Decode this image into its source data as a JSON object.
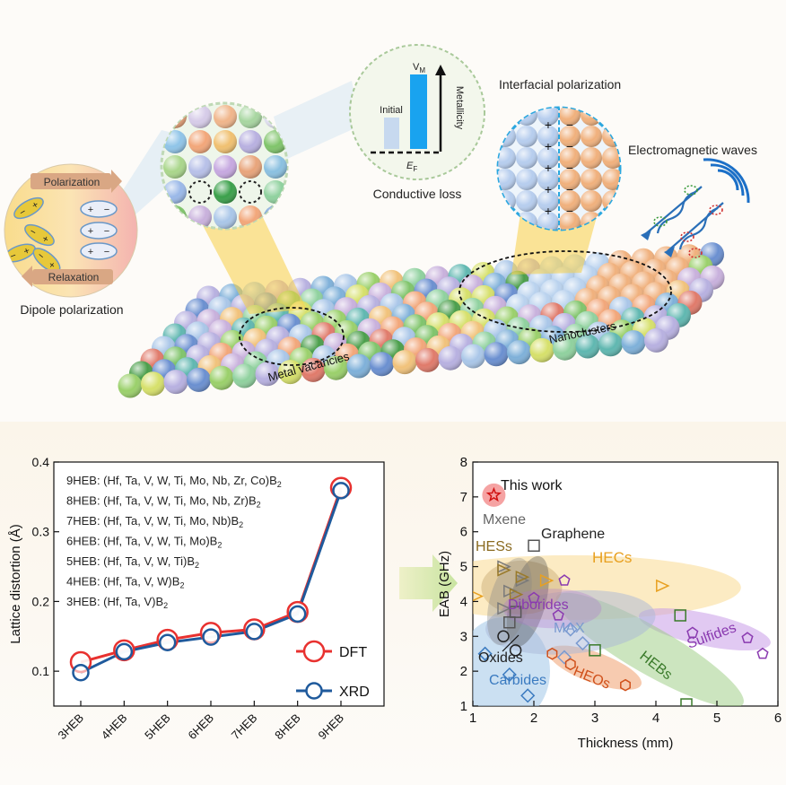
{
  "top": {
    "interfacial": "Interfacial polarization",
    "em_waves": "Electromagnetic waves",
    "conductive_loss": "Conductive loss",
    "metallicity": "Metallicity",
    "initial": "Initial",
    "vm": "V",
    "vm_sub": "M",
    "ef": "E",
    "ef_sub": "F",
    "polarization": "Polarization",
    "relaxation": "Relaxation",
    "dipole": "Dipole polarization",
    "metal_vacancies": "Metal vacancies",
    "nanoclusters": "Nanoclusters"
  },
  "colors": {
    "dft": "#e8312f",
    "xrd": "#1f5a9c",
    "ball_palette": [
      "#f2a679",
      "#a9c6e8",
      "#7fc46a",
      "#c8b0dc",
      "#4a9e4a",
      "#8fd19e",
      "#b7b0e0",
      "#7eb0d9",
      "#f1c27a",
      "#d6e06a",
      "#5fb7b0",
      "#e07a6a",
      "#9ad06a",
      "#6a8fd0"
    ]
  },
  "chart_data": [
    {
      "type": "line",
      "ylabel": "Lattice distortion (Å)",
      "categories": [
        "3HEB",
        "4HEB",
        "5HEB",
        "6HEB",
        "7HEB",
        "8HEB",
        "9HEB"
      ],
      "ylim": [
        0.05,
        0.4
      ],
      "yticks": [
        "0.1",
        "0.2",
        "0.3",
        "0.4"
      ],
      "series": [
        {
          "name": "DFT",
          "values": [
            0.113,
            0.13,
            0.145,
            0.155,
            0.16,
            0.185,
            0.363
          ]
        },
        {
          "name": "XRD",
          "values": [
            0.098,
            0.128,
            0.141,
            0.149,
            0.157,
            0.182,
            0.359
          ]
        }
      ],
      "annotations": [
        {
          "name": "9HEB: (Hf, Ta, V, W, Ti, Mo, Nb, Zr, Co)B",
          "sub": "2"
        },
        {
          "name": "8HEB: (Hf, Ta, V, W, Ti, Mo, Nb, Zr)B",
          "sub": "2"
        },
        {
          "name": "7HEB: (Hf, Ta, V, W, Ti, Mo, Nb)B",
          "sub": "2"
        },
        {
          "name": "6HEB: (Hf, Ta, V, W, Ti, Mo)B",
          "sub": "2"
        },
        {
          "name": "5HEB: (Hf, Ta, V, W, Ti)B",
          "sub": "2"
        },
        {
          "name": "4HEB: (Hf, Ta, V, W)B",
          "sub": "2"
        },
        {
          "name": "3HEB: (Hf, Ta, V)B",
          "sub": "2"
        }
      ],
      "legend_position": "bottom-right"
    },
    {
      "type": "scatter",
      "xlabel": "Thickness (mm)",
      "ylabel": "EAB (GHz)",
      "xlim": [
        1,
        6
      ],
      "ylim": [
        1,
        8
      ],
      "xticks": [
        "1",
        "2",
        "3",
        "4",
        "5",
        "6"
      ],
      "yticks": [
        "1",
        "2",
        "3",
        "4",
        "5",
        "6",
        "7",
        "8"
      ],
      "this_work": {
        "label": "This work",
        "x": 1.3,
        "y": 7.05
      },
      "groups": [
        {
          "name": "Mxene",
          "color": "#7a7a7a",
          "marker": "triangle",
          "points": [
            [
              1.5,
              5.0
            ],
            [
              1.6,
              4.3
            ],
            [
              1.8,
              4.6
            ],
            [
              1.5,
              3.8
            ]
          ]
        },
        {
          "name": "Graphene",
          "color": "#555555",
          "marker": "square",
          "points": [
            [
              2.0,
              5.6
            ],
            [
              1.7,
              3.7
            ],
            [
              1.6,
              3.4
            ]
          ]
        },
        {
          "name": "HESs",
          "color": "#9a7a2a",
          "marker": "triangle",
          "points": [
            [
              1.5,
              4.9
            ],
            [
              1.8,
              4.7
            ],
            [
              1.7,
              4.2
            ]
          ]
        },
        {
          "name": "HECs",
          "color": "#e8a020",
          "marker": "triangle",
          "points": [
            [
              1.05,
              4.15
            ],
            [
              2.2,
              4.6
            ],
            [
              4.1,
              4.45
            ]
          ]
        },
        {
          "name": "Diborides",
          "color": "#8a3ab0",
          "marker": "pentagon",
          "points": [
            [
              2.5,
              4.6
            ],
            [
              2.0,
              4.1
            ],
            [
              2.4,
              3.6
            ]
          ]
        },
        {
          "name": "MAX",
          "color": "#7a9ad0",
          "marker": "diamond",
          "points": [
            [
              2.6,
              3.2
            ],
            [
              2.8,
              2.8
            ],
            [
              2.5,
              2.4
            ]
          ]
        },
        {
          "name": "Sulfides",
          "color": "#8a3ab0",
          "marker": "pentagon",
          "points": [
            [
              5.5,
              2.95
            ],
            [
              5.75,
              2.5
            ],
            [
              4.6,
              3.1
            ]
          ]
        },
        {
          "name": "HEBs",
          "color": "#3a7a2a",
          "marker": "square",
          "points": [
            [
              4.4,
              3.6
            ],
            [
              4.5,
              1.05
            ],
            [
              3.0,
              2.6
            ]
          ]
        },
        {
          "name": "HEOs",
          "color": "#d0501a",
          "marker": "hexagon",
          "points": [
            [
              3.5,
              1.6
            ],
            [
              2.6,
              2.2
            ],
            [
              2.3,
              2.5
            ]
          ]
        },
        {
          "name": "Oxides",
          "color": "#222222",
          "marker": "circle",
          "points": [
            [
              1.5,
              3.0
            ],
            [
              1.7,
              2.6
            ]
          ]
        },
        {
          "name": "Carbides",
          "color": "#3a7ac0",
          "marker": "diamond",
          "points": [
            [
              1.9,
              1.3
            ],
            [
              1.2,
              2.5
            ],
            [
              1.6,
              1.9
            ]
          ]
        }
      ]
    }
  ]
}
